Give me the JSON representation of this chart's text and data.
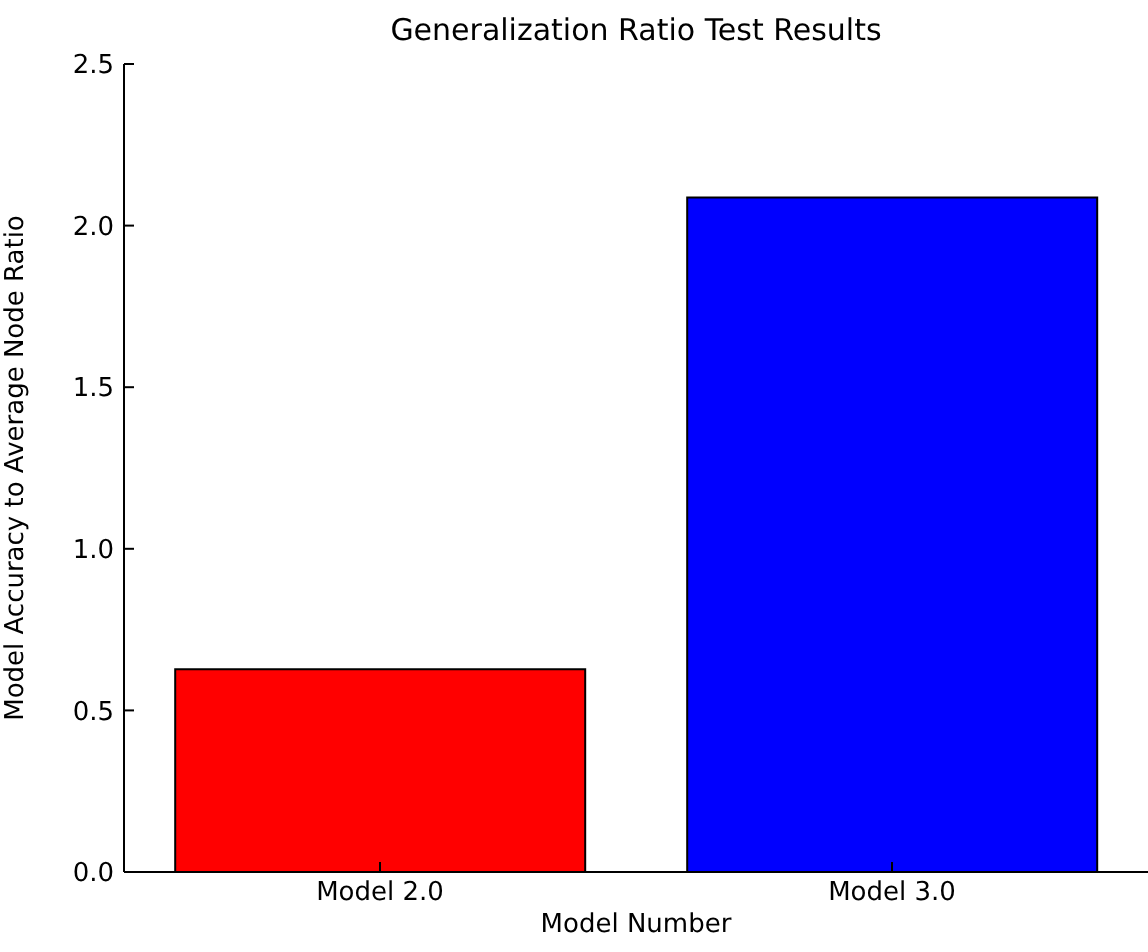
{
  "chart_data": {
    "type": "bar",
    "title": "Generalization Ratio Test Results",
    "xlabel": "Model Number",
    "ylabel": "Model Accuracy to Average Node Ratio",
    "categories": [
      "Model 2.0",
      "Model 3.0"
    ],
    "values": [
      0.627,
      2.087
    ],
    "colors": [
      "#ff0000",
      "#0000ff"
    ],
    "ylim": [
      0,
      2.5
    ],
    "yticks": [
      {
        "value": 0,
        "label": "0.0"
      },
      {
        "value": 0.5,
        "label": "0.5"
      },
      {
        "value": 1,
        "label": "1.0"
      },
      {
        "value": 1.5,
        "label": "1.5"
      },
      {
        "value": 2,
        "label": "2.0"
      },
      {
        "value": 2.5,
        "label": "2.5"
      }
    ],
    "grid": false,
    "legend": false
  }
}
